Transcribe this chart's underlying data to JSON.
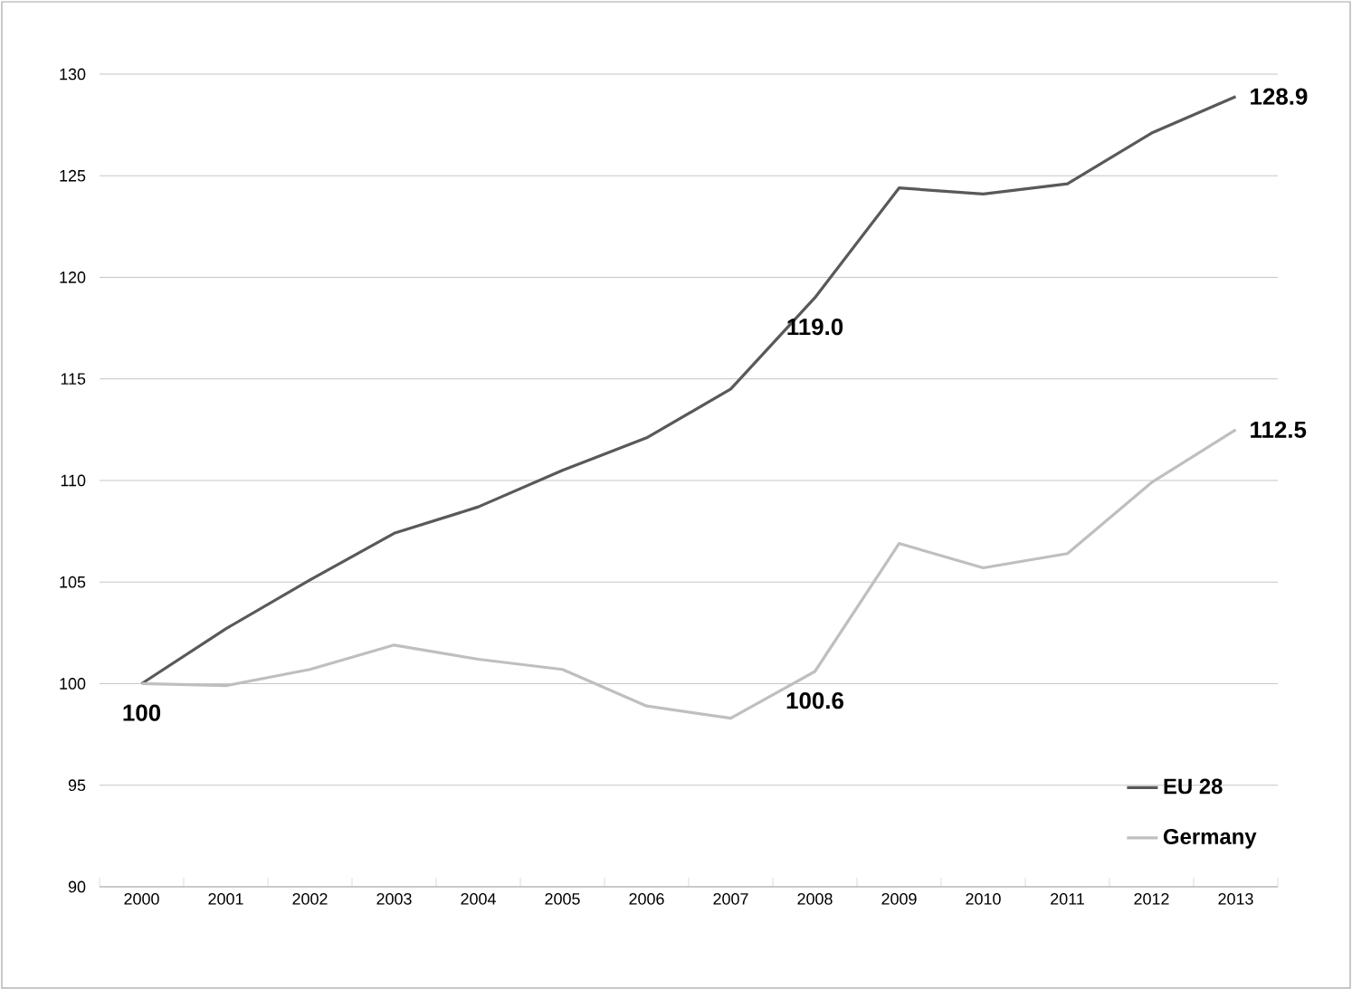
{
  "chart_data": {
    "type": "line",
    "categories": [
      "2000",
      "2001",
      "2002",
      "2003",
      "2004",
      "2005",
      "2006",
      "2007",
      "2008",
      "2009",
      "2010",
      "2011",
      "2012",
      "2013"
    ],
    "series": [
      {
        "name": "EU 28",
        "color": "#595959",
        "values": [
          100,
          102.7,
          105.1,
          107.4,
          108.7,
          110.5,
          112.1,
          114.5,
          119.0,
          124.4,
          124.1,
          124.6,
          127.1,
          128.9
        ],
        "value_labels": [
          "100",
          null,
          null,
          null,
          null,
          null,
          null,
          null,
          "119.0",
          null,
          null,
          null,
          null,
          "128.9"
        ]
      },
      {
        "name": "Germany",
        "color": "#bfbfbf",
        "values": [
          100,
          99.9,
          100.7,
          101.9,
          101.2,
          100.7,
          98.9,
          98.3,
          100.6,
          106.9,
          105.7,
          106.4,
          109.9,
          112.5
        ],
        "value_labels": [
          null,
          null,
          null,
          null,
          null,
          null,
          null,
          null,
          "100.6",
          null,
          null,
          null,
          null,
          "112.5"
        ]
      }
    ],
    "ylim": [
      90,
      130
    ],
    "yticks": [
      90,
      95,
      100,
      105,
      110,
      115,
      120,
      125,
      130
    ],
    "grid": "y",
    "legend": "bottom right",
    "marker": "none",
    "line_style": "solid"
  }
}
